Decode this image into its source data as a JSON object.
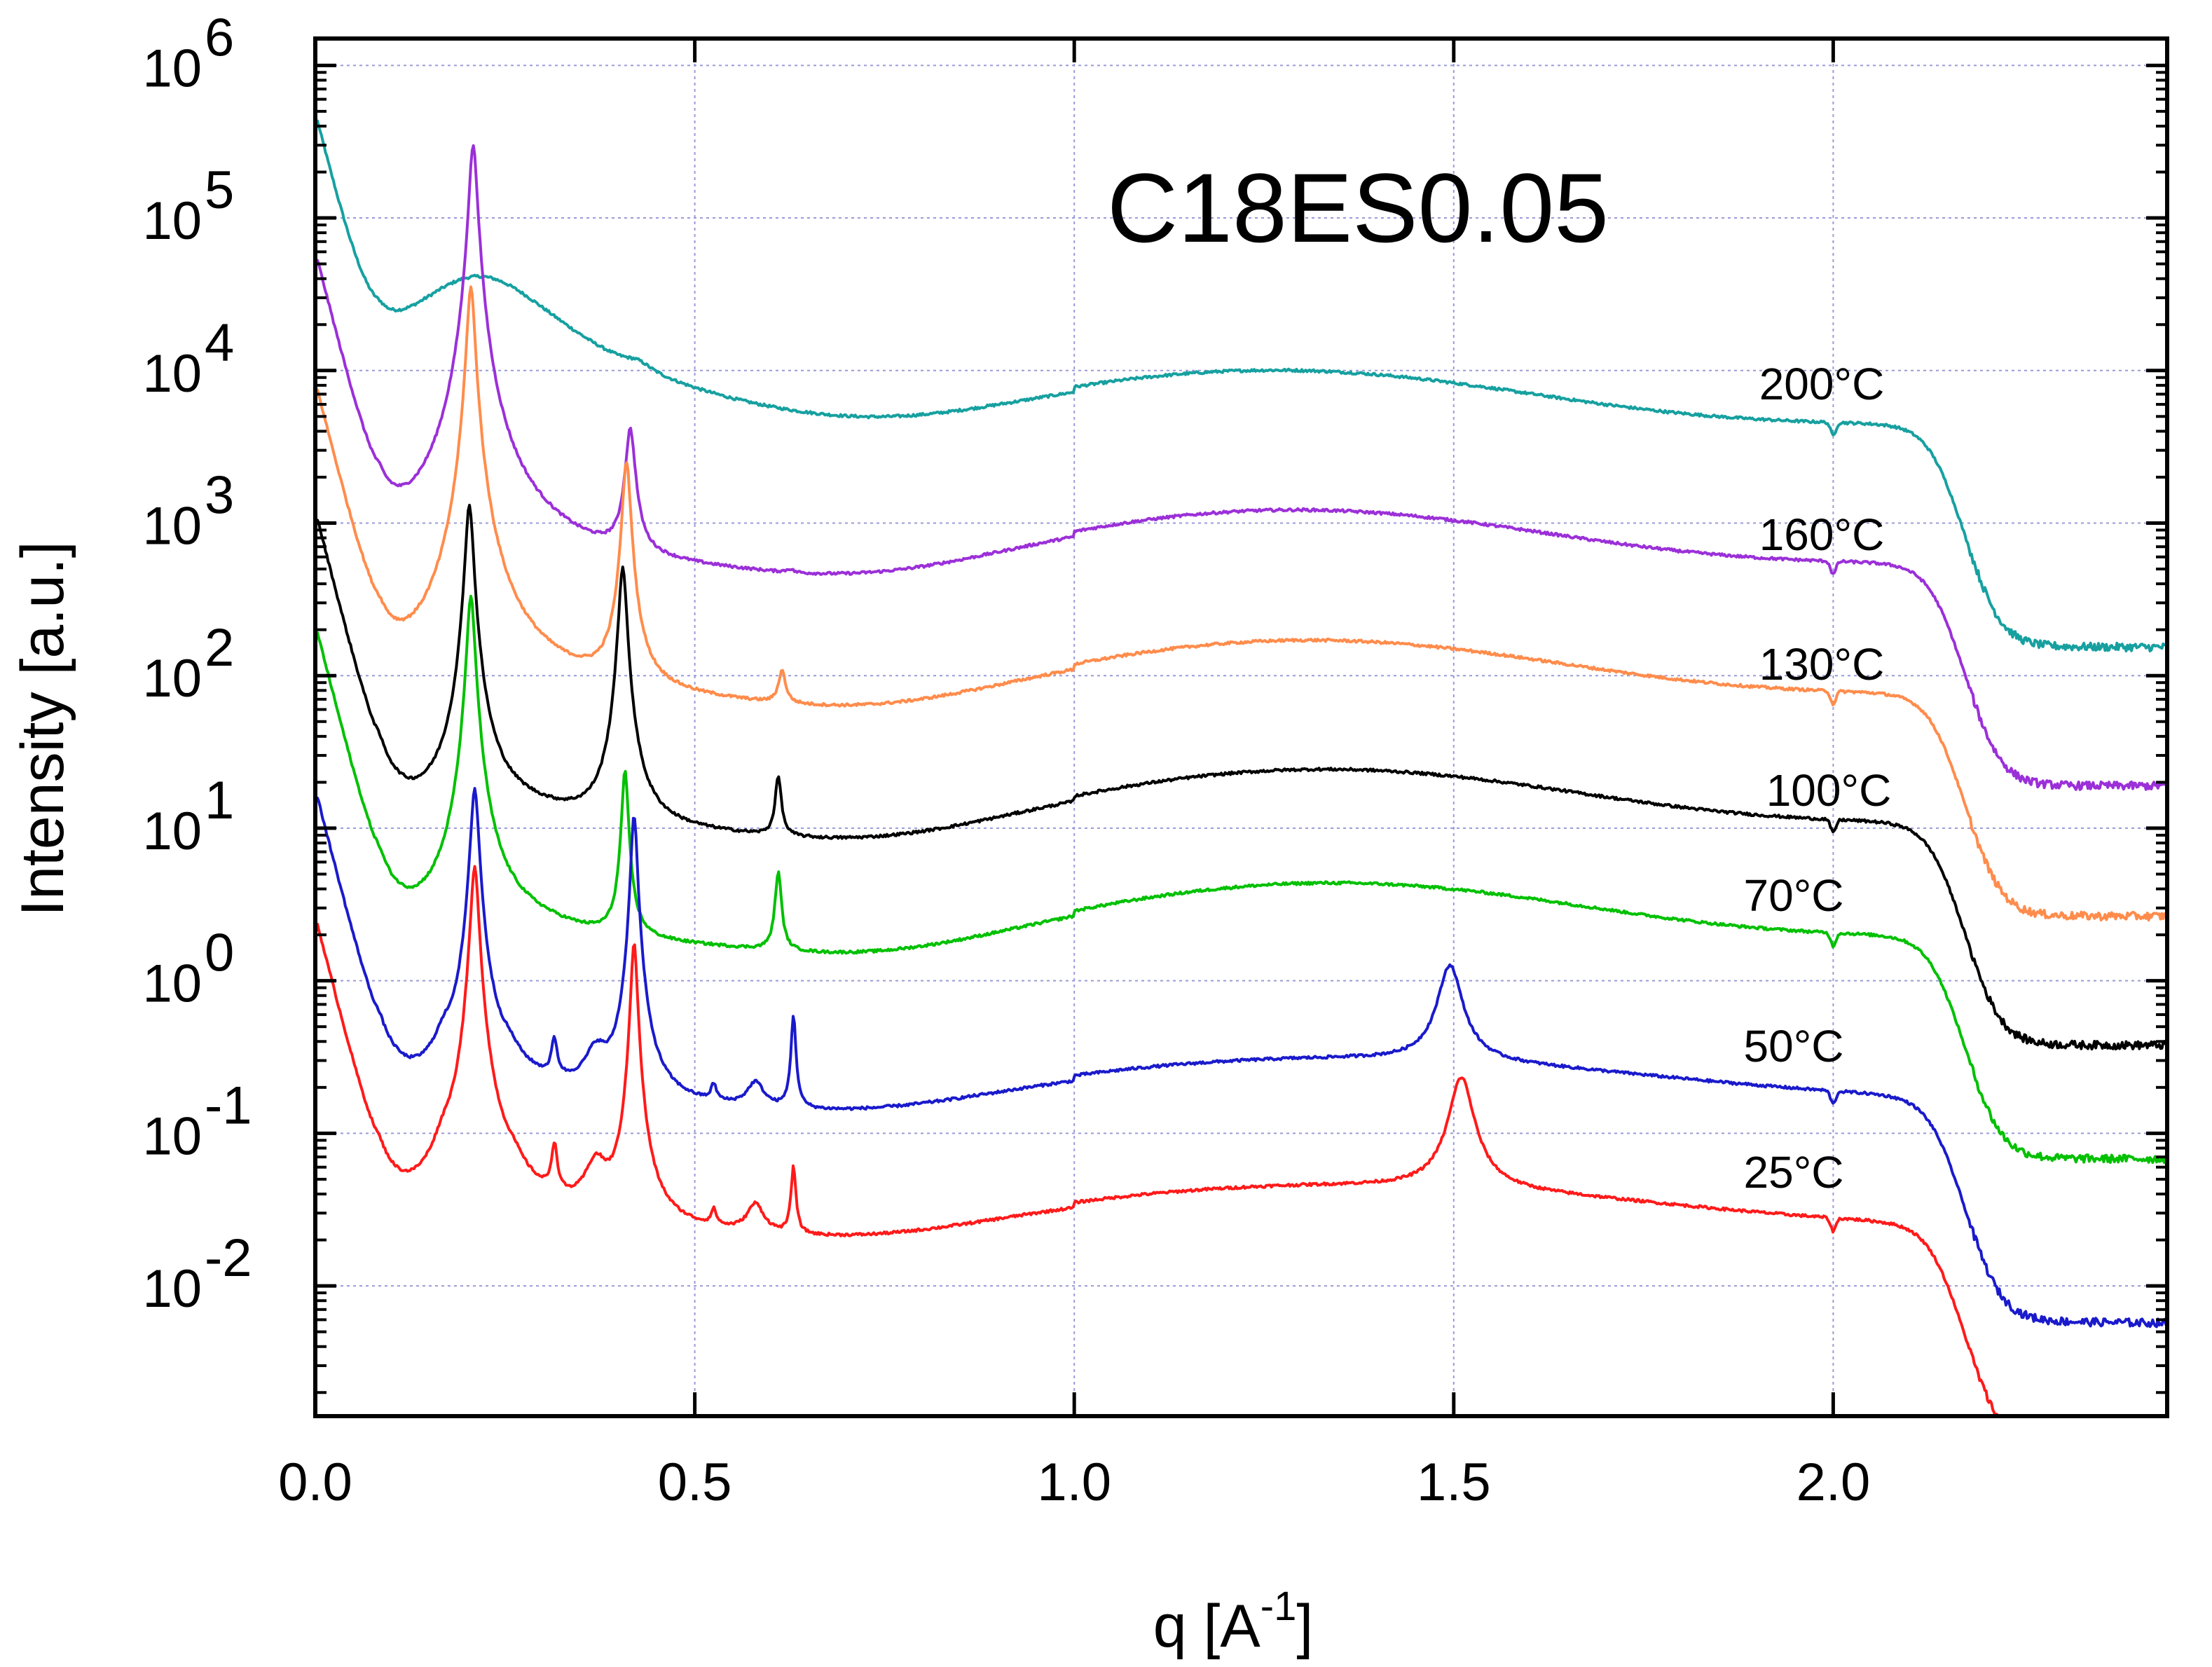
{
  "chart_data": {
    "type": "line",
    "title": "C18ES0.05",
    "xlabel": "q [A",
    "xlabel_sup": "-1",
    "xlabel_close": "]",
    "ylabel": "Intensity [a.u.]",
    "xlim": [
      0.0,
      2.44
    ],
    "ylim": [
      0.0014,
      1500000
    ],
    "yscale": "log",
    "grid": true,
    "x_ticks": [
      {
        "value": 0.0,
        "label": "0.0"
      },
      {
        "value": 0.5,
        "label": "0.5"
      },
      {
        "value": 1.0,
        "label": "1.0"
      },
      {
        "value": 1.5,
        "label": "1.5"
      },
      {
        "value": 2.0,
        "label": "2.0"
      }
    ],
    "y_ticks": [
      {
        "value": 1000000,
        "base": "10",
        "exp": "6"
      },
      {
        "value": 100000,
        "base": "10",
        "exp": "5"
      },
      {
        "value": 10000,
        "base": "10",
        "exp": "4"
      },
      {
        "value": 1000,
        "base": "10",
        "exp": "3"
      },
      {
        "value": 100,
        "base": "10",
        "exp": "2"
      },
      {
        "value": 10,
        "base": "10",
        "exp": "1"
      },
      {
        "value": 1,
        "base": "10",
        "exp": "0"
      },
      {
        "value": 0.1,
        "base": "10",
        "exp": "-1"
      },
      {
        "value": 0.01,
        "base": "10",
        "exp": "-2"
      }
    ],
    "series": [
      {
        "name": "200°C",
        "color": "#17a0a0",
        "scale": 4000,
        "peaks": [
          [
            0.215,
            9.0,
            0.1
          ],
          [
            0.425,
            0.3,
            0.02
          ]
        ],
        "halo": [
          1.27,
          1.25,
          0.38
        ]
      },
      {
        "name": "160°C",
        "color": "#9b30d8",
        "scale": 500,
        "peaks": [
          [
            0.208,
            600,
            0.005
          ],
          [
            0.415,
            7,
            0.006
          ],
          [
            0.625,
            0.05,
            0.005
          ]
        ],
        "halo": [
          1.29,
          1.25,
          0.38
        ]
      },
      {
        "name": "130°C",
        "color": "#ff8c4c",
        "scale": 70,
        "peaks": [
          [
            0.205,
            500,
            0.005
          ],
          [
            0.41,
            35,
            0.005
          ],
          [
            0.615,
            0.6,
            0.005
          ]
        ],
        "halo": [
          1.31,
          1.25,
          0.38
        ]
      },
      {
        "name": "100°C",
        "color": "#000000",
        "scale": 10,
        "peaks": [
          [
            0.203,
            130,
            0.005
          ],
          [
            0.405,
            50,
            0.005
          ],
          [
            0.61,
            1.3,
            0.004
          ]
        ],
        "halo": [
          1.33,
          1.25,
          0.38
        ]
      },
      {
        "name": "70°C",
        "color": "#00c000",
        "scale": 1.8,
        "peaks": [
          [
            0.205,
            180,
            0.005
          ],
          [
            0.408,
            12,
            0.004
          ],
          [
            0.61,
            2.0,
            0.004
          ]
        ],
        "halo": [
          1.34,
          1.25,
          0.38
        ]
      },
      {
        "name": "50°C",
        "color": "#1a1acc",
        "scale": 0.15,
        "peaks": [
          [
            0.21,
            120,
            0.005
          ],
          [
            0.42,
            80,
            0.004
          ],
          [
            0.63,
            3.0,
            0.003
          ],
          [
            0.315,
            1.2,
            0.004
          ],
          [
            0.525,
            0.3,
            0.004
          ],
          [
            0.17,
            0.8,
            0.015
          ],
          [
            0.37,
            1.0,
            0.015
          ],
          [
            0.58,
            0.45,
            0.012
          ],
          [
            0.255,
            0.4,
            0.015
          ],
          [
            1.495,
            6.0,
            0.015
          ]
        ],
        "halo": [
          1.35,
          0.9,
          0.5
        ]
      },
      {
        "name": "25°C",
        "color": "#ff1a1a",
        "scale": 0.022,
        "peaks": [
          [
            0.21,
            250,
            0.005
          ],
          [
            0.42,
            80,
            0.004
          ],
          [
            0.63,
            1.8,
            0.003
          ],
          [
            0.315,
            2.0,
            0.004
          ],
          [
            0.525,
            0.3,
            0.004
          ],
          [
            0.17,
            1.2,
            0.015
          ],
          [
            0.37,
            1.5,
            0.015
          ],
          [
            0.58,
            0.55,
            0.012
          ],
          [
            0.26,
            0.5,
            0.015
          ],
          [
            1.51,
            8.0,
            0.015
          ]
        ],
        "halo": [
          1.35,
          0.9,
          0.5
        ]
      }
    ]
  }
}
